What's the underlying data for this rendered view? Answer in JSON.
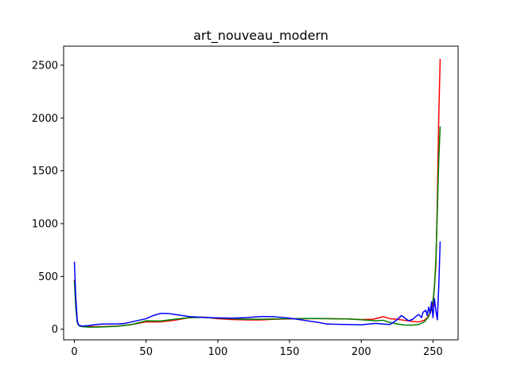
{
  "chart_data": {
    "type": "line",
    "title": "art_nouveau_modern",
    "xlabel": "",
    "ylabel": "",
    "xlim": [
      -7.5,
      267.5
    ],
    "ylim": [
      -100,
      2680
    ],
    "xticks": [
      0,
      50,
      100,
      150,
      200,
      250
    ],
    "yticks": [
      0,
      500,
      1000,
      1500,
      2000,
      2500
    ],
    "grid": false,
    "series": [
      {
        "color": "#ff0000",
        "points": [
          [
            0,
            470
          ],
          [
            1,
            220
          ],
          [
            2,
            70
          ],
          [
            3,
            40
          ],
          [
            5,
            30
          ],
          [
            8,
            28
          ],
          [
            12,
            25
          ],
          [
            20,
            25
          ],
          [
            30,
            30
          ],
          [
            40,
            45
          ],
          [
            50,
            70
          ],
          [
            60,
            70
          ],
          [
            70,
            85
          ],
          [
            80,
            110
          ],
          [
            90,
            115
          ],
          [
            100,
            100
          ],
          [
            110,
            92
          ],
          [
            120,
            88
          ],
          [
            130,
            88
          ],
          [
            140,
            95
          ],
          [
            150,
            98
          ],
          [
            160,
            100
          ],
          [
            170,
            102
          ],
          [
            180,
            100
          ],
          [
            190,
            98
          ],
          [
            200,
            92
          ],
          [
            208,
            95
          ],
          [
            213,
            110
          ],
          [
            215,
            120
          ],
          [
            220,
            100
          ],
          [
            225,
            95
          ],
          [
            230,
            85
          ],
          [
            235,
            75
          ],
          [
            240,
            70
          ],
          [
            244,
            85
          ],
          [
            246,
            110
          ],
          [
            248,
            150
          ],
          [
            250,
            230
          ],
          [
            252,
            600
          ],
          [
            253,
            1200
          ],
          [
            254,
            2000
          ],
          [
            255,
            2560
          ]
        ]
      },
      {
        "color": "#008000",
        "points": [
          [
            0,
            460
          ],
          [
            1,
            200
          ],
          [
            2,
            65
          ],
          [
            3,
            35
          ],
          [
            5,
            25
          ],
          [
            10,
            20
          ],
          [
            20,
            22
          ],
          [
            30,
            28
          ],
          [
            40,
            45
          ],
          [
            50,
            80
          ],
          [
            60,
            78
          ],
          [
            70,
            95
          ],
          [
            80,
            110
          ],
          [
            90,
            112
          ],
          [
            100,
            105
          ],
          [
            110,
            100
          ],
          [
            120,
            95
          ],
          [
            130,
            95
          ],
          [
            140,
            98
          ],
          [
            150,
            100
          ],
          [
            160,
            102
          ],
          [
            170,
            102
          ],
          [
            180,
            100
          ],
          [
            190,
            98
          ],
          [
            200,
            90
          ],
          [
            210,
            80
          ],
          [
            215,
            85
          ],
          [
            220,
            65
          ],
          [
            225,
            50
          ],
          [
            230,
            40
          ],
          [
            235,
            38
          ],
          [
            240,
            45
          ],
          [
            244,
            70
          ],
          [
            247,
            120
          ],
          [
            249,
            200
          ],
          [
            250,
            270
          ],
          [
            251,
            400
          ],
          [
            252,
            650
          ],
          [
            253,
            1100
          ],
          [
            254,
            1600
          ],
          [
            255,
            1920
          ]
        ]
      },
      {
        "color": "#0000ff",
        "points": [
          [
            0,
            640
          ],
          [
            1,
            300
          ],
          [
            2,
            80
          ],
          [
            3,
            40
          ],
          [
            5,
            30
          ],
          [
            10,
            35
          ],
          [
            15,
            45
          ],
          [
            20,
            50
          ],
          [
            30,
            50
          ],
          [
            35,
            55
          ],
          [
            40,
            70
          ],
          [
            50,
            100
          ],
          [
            55,
            130
          ],
          [
            60,
            150
          ],
          [
            65,
            150
          ],
          [
            70,
            140
          ],
          [
            80,
            120
          ],
          [
            90,
            112
          ],
          [
            100,
            108
          ],
          [
            110,
            105
          ],
          [
            120,
            110
          ],
          [
            130,
            120
          ],
          [
            135,
            120
          ],
          [
            140,
            118
          ],
          [
            150,
            105
          ],
          [
            160,
            85
          ],
          [
            170,
            65
          ],
          [
            175,
            52
          ],
          [
            180,
            48
          ],
          [
            190,
            45
          ],
          [
            200,
            42
          ],
          [
            210,
            55
          ],
          [
            215,
            50
          ],
          [
            220,
            45
          ],
          [
            225,
            90
          ],
          [
            228,
            130
          ],
          [
            230,
            110
          ],
          [
            233,
            80
          ],
          [
            236,
            95
          ],
          [
            238,
            120
          ],
          [
            240,
            140
          ],
          [
            242,
            110
          ],
          [
            243,
            160
          ],
          [
            245,
            180
          ],
          [
            246,
            130
          ],
          [
            247,
            210
          ],
          [
            248,
            150
          ],
          [
            249,
            260
          ],
          [
            250,
            110
          ],
          [
            251,
            290
          ],
          [
            252,
            180
          ],
          [
            253,
            90
          ],
          [
            254,
            400
          ],
          [
            255,
            830
          ]
        ]
      }
    ]
  }
}
